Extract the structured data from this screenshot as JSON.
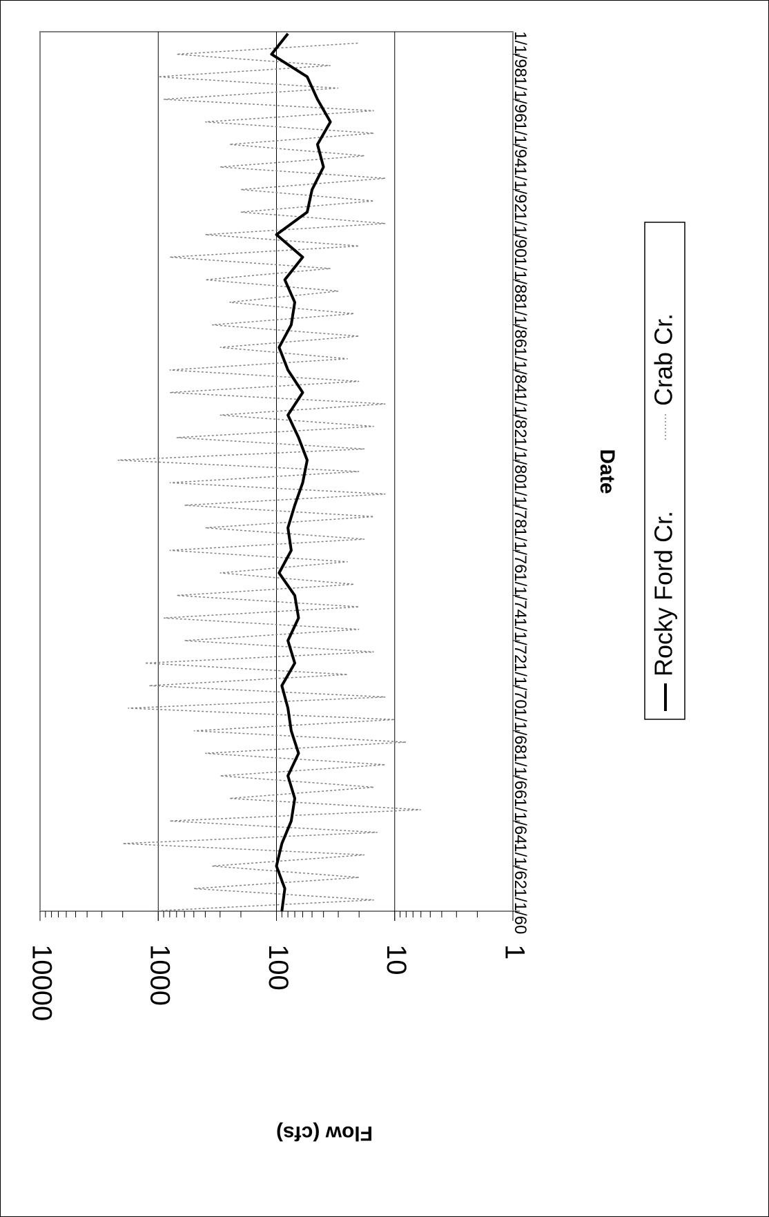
{
  "chart_data": {
    "type": "line",
    "orientation": "rotated-90-clockwise",
    "xlabel": "Date",
    "ylabel": "Flow (cfs)",
    "y_scale": "log",
    "ylim": [
      1,
      10000
    ],
    "y_ticks": [
      "1",
      "10",
      "100",
      "1000",
      "10000"
    ],
    "x_ticks": [
      "1/1/60",
      "1/1/62",
      "1/1/64",
      "1/1/66",
      "1/1/68",
      "1/1/70",
      "1/1/72",
      "1/1/74",
      "1/1/76",
      "1/1/78",
      "1/1/80",
      "1/1/82",
      "1/1/84",
      "1/1/86",
      "1/1/88",
      "1/1/90",
      "1/1/92",
      "1/1/94",
      "1/1/96",
      "1/1/98"
    ],
    "xlim": [
      "1960-01-01",
      "1998-12-31"
    ],
    "grid": "horizontal major lines at each decade",
    "legend_position": "right",
    "colors": {
      "rocky_ford": "#000000",
      "crab": "#808080"
    },
    "series": [
      {
        "name": "Rocky Ford Cr.",
        "style": "solid thick black",
        "x": [
          "1960-01-01",
          "1961-01-01",
          "1962-01-01",
          "1963-01-01",
          "1964-01-01",
          "1965-01-01",
          "1966-01-01",
          "1967-01-01",
          "1968-01-01",
          "1969-01-01",
          "1970-01-01",
          "1971-01-01",
          "1972-01-01",
          "1973-01-01",
          "1974-01-01",
          "1975-01-01",
          "1976-01-01",
          "1977-01-01",
          "1978-01-01",
          "1979-01-01",
          "1980-01-01",
          "1981-01-01",
          "1982-01-01",
          "1983-01-01",
          "1984-01-01",
          "1985-01-01",
          "1986-01-01",
          "1987-01-01",
          "1988-01-01",
          "1989-01-01",
          "1990-01-01",
          "1991-01-01",
          "1992-01-01",
          "1993-01-01",
          "1994-01-01",
          "1995-01-01",
          "1996-01-01",
          "1997-01-01",
          "1998-01-01",
          "1998-12-01"
        ],
        "y": [
          90,
          85,
          100,
          90,
          75,
          70,
          80,
          65,
          75,
          80,
          90,
          70,
          80,
          65,
          70,
          95,
          75,
          80,
          70,
          60,
          55,
          65,
          80,
          60,
          80,
          95,
          75,
          70,
          85,
          60,
          100,
          55,
          50,
          40,
          45,
          35,
          45,
          55,
          110,
          80
        ]
      },
      {
        "name": "Crab Cr.",
        "style": "dashed grey",
        "x": [
          "1960-01-01",
          "1960-07-01",
          "1961-01-01",
          "1961-07-01",
          "1962-01-01",
          "1962-07-01",
          "1963-01-01",
          "1963-07-01",
          "1964-01-01",
          "1964-07-01",
          "1965-01-01",
          "1965-07-01",
          "1966-01-01",
          "1966-07-01",
          "1967-01-01",
          "1967-07-01",
          "1968-01-01",
          "1968-07-01",
          "1969-01-01",
          "1969-07-01",
          "1970-01-01",
          "1970-07-01",
          "1971-01-01",
          "1971-07-01",
          "1972-01-01",
          "1972-07-01",
          "1973-01-01",
          "1973-07-01",
          "1974-01-01",
          "1974-07-01",
          "1975-01-01",
          "1975-07-01",
          "1976-01-01",
          "1976-07-01",
          "1977-01-01",
          "1977-07-01",
          "1978-01-01",
          "1978-07-01",
          "1979-01-01",
          "1979-07-01",
          "1980-01-01",
          "1980-07-01",
          "1981-01-01",
          "1981-07-01",
          "1982-01-01",
          "1982-07-01",
          "1983-01-01",
          "1983-07-01",
          "1984-01-01",
          "1984-07-01",
          "1985-01-01",
          "1985-07-01",
          "1986-01-01",
          "1986-07-01",
          "1987-01-01",
          "1987-07-01",
          "1988-01-01",
          "1988-07-01",
          "1989-01-01",
          "1989-07-01",
          "1990-01-01",
          "1990-07-01",
          "1991-01-01",
          "1991-07-01",
          "1992-01-01",
          "1992-07-01",
          "1993-01-01",
          "1993-07-01",
          "1994-01-01",
          "1994-07-01",
          "1995-01-01",
          "1995-07-01",
          "1996-01-01",
          "1996-07-01",
          "1997-01-01",
          "1997-07-01",
          "1998-01-01",
          "1998-07-01"
        ],
        "y": [
          1200,
          15,
          500,
          20,
          350,
          18,
          2000,
          14,
          800,
          6,
          250,
          15,
          300,
          12,
          400,
          8,
          500,
          10,
          1800,
          12,
          1200,
          25,
          1300,
          15,
          600,
          20,
          900,
          20,
          700,
          22,
          300,
          25,
          800,
          18,
          400,
          15,
          600,
          12,
          800,
          20,
          2200,
          18,
          700,
          15,
          300,
          12,
          800,
          20,
          800,
          25,
          300,
          20,
          350,
          22,
          250,
          30,
          400,
          35,
          800,
          20,
          400,
          12,
          200,
          15,
          200,
          12,
          300,
          18,
          250,
          15,
          400,
          15,
          900,
          30,
          1000,
          35,
          700,
          20
        ]
      }
    ]
  }
}
